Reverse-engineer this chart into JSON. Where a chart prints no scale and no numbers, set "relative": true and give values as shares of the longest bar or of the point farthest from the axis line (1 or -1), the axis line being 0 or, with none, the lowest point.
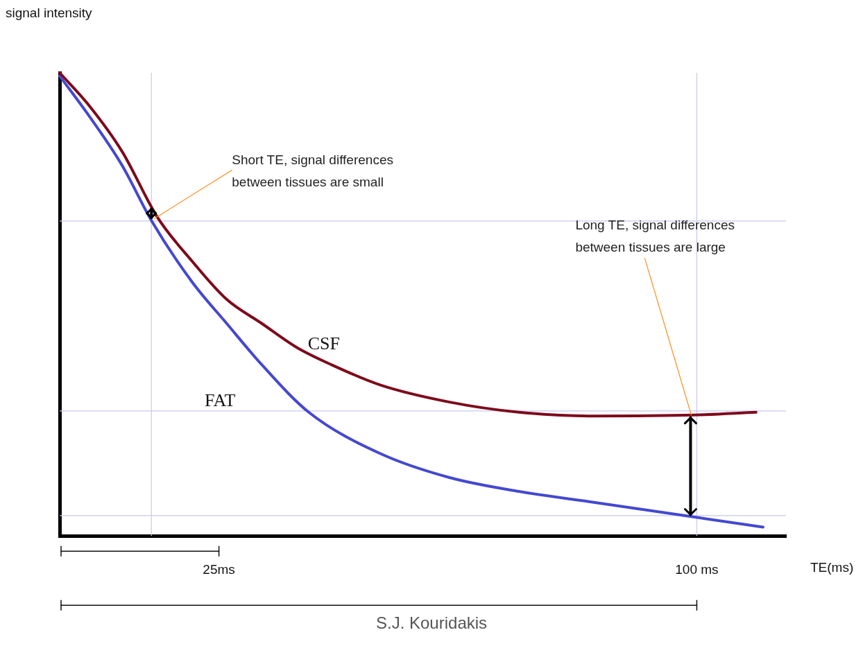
{
  "chart_data": {
    "type": "line",
    "relative": true,
    "xlabel": "TE(ms)",
    "ylabel": "signal intensity",
    "xlim": [
      0,
      114
    ],
    "xticks": [
      {
        "value": 25,
        "label": "25ms"
      },
      {
        "value": 100,
        "label": "100 ms"
      }
    ],
    "marker": "none",
    "line_style": "solid",
    "series": [
      {
        "name": "CSF",
        "color": "#7d0a1c",
        "x": [
          0,
          4.4,
          9.8,
          15.3,
          20.8,
          26.2,
          31.7,
          37.2,
          42.6,
          50.3,
          61.2,
          72.1,
          83.1,
          99.5,
          109.3
        ],
        "values": [
          1.0,
          0.933,
          0.83,
          0.689,
          0.593,
          0.511,
          0.459,
          0.407,
          0.37,
          0.326,
          0.289,
          0.267,
          0.259,
          0.261,
          0.267
        ]
      },
      {
        "name": "FAT",
        "color": "#4448d0",
        "x": [
          0,
          4.4,
          9.8,
          14.4,
          20.8,
          26.2,
          31.7,
          39.1,
          50.3,
          61.2,
          72.1,
          83.1,
          99.5,
          110.4
        ],
        "values": [
          0.993,
          0.911,
          0.8,
          0.681,
          0.548,
          0.459,
          0.37,
          0.267,
          0.178,
          0.126,
          0.096,
          0.074,
          0.041,
          0.019
        ]
      }
    ],
    "ref_lines": [
      {
        "axis": "x",
        "value": 14.4,
        "color": "#c8c8f0"
      },
      {
        "axis": "x",
        "value": 100,
        "color": "#c8c8f0"
      },
      {
        "axis": "y",
        "value": 0.68,
        "color": "#c8c8f0"
      },
      {
        "axis": "y",
        "value": 0.27,
        "color": "#c8c8f0"
      },
      {
        "axis": "y",
        "value": 0.044,
        "color": "#c8c8f0"
      }
    ],
    "annotations": [
      {
        "text": "Short TE, signal differences between tissues are small",
        "x": 14.4,
        "y": 0.685
      },
      "Long TE, signal differences between tissues are large",
      "S.J. Kouridakis"
    ]
  }
}
